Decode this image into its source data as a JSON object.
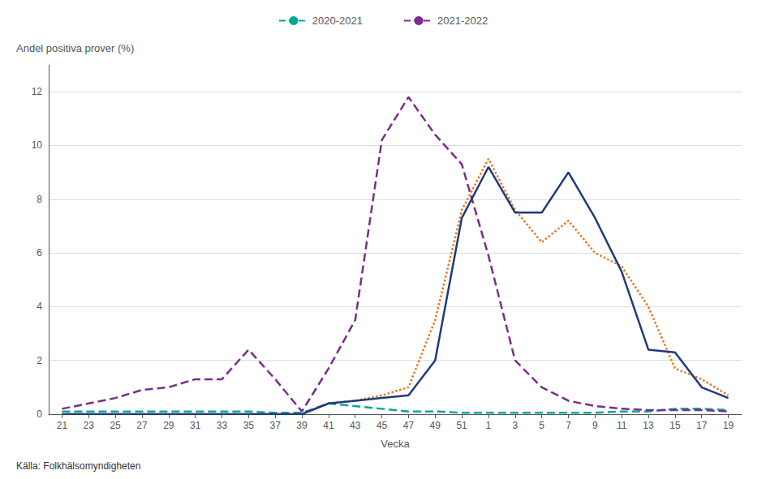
{
  "chart_data": {
    "type": "line",
    "ylabel": "Andel positiva prover (%)",
    "xlabel": "Vecka",
    "source": "Källa: Folkhälsomyndigheten",
    "categories": [
      "21",
      "23",
      "25",
      "27",
      "29",
      "31",
      "33",
      "35",
      "37",
      "39",
      "41",
      "43",
      "45",
      "47",
      "49",
      "51",
      "1",
      "3",
      "5",
      "7",
      "9",
      "11",
      "13",
      "15",
      "17",
      "19"
    ],
    "ylim": [
      0,
      13
    ],
    "yticks": [
      0,
      2,
      4,
      6,
      8,
      10,
      12
    ],
    "grid": true,
    "legend": "top",
    "series": [
      {
        "name": "2020-2021",
        "color": "#00A896",
        "line_style": "dashed",
        "values": [
          0.1,
          0.1,
          0.1,
          0.1,
          0.1,
          0.1,
          0.1,
          0.1,
          0.05,
          0.05,
          0.4,
          0.3,
          0.2,
          0.1,
          0.1,
          0.05,
          0.05,
          0.05,
          0.05,
          0.05,
          0.05,
          0.1,
          0.1,
          0.2,
          0.2,
          0.15
        ]
      },
      {
        "name": "2021-2022",
        "color": "#7B2D8B",
        "line_style": "dashed",
        "values": [
          0.2,
          0.4,
          0.6,
          0.9,
          1.0,
          1.3,
          1.3,
          2.4,
          1.3,
          0.1,
          1.7,
          3.5,
          10.2,
          11.8,
          10.4,
          9.3,
          5.9,
          2.0,
          1.0,
          0.5,
          0.3,
          0.2,
          0.15,
          0.15,
          0.15,
          0.1
        ]
      },
      {
        "color": "#E87722",
        "line_style": "dotted",
        "values": [
          0.0,
          0.0,
          0.0,
          0.0,
          0.0,
          0.0,
          0.0,
          0.0,
          0.0,
          0.0,
          0.4,
          0.5,
          0.7,
          1.0,
          3.5,
          7.6,
          9.5,
          7.6,
          6.4,
          7.2,
          6.0,
          5.5,
          4.0,
          1.7,
          1.3,
          0.7
        ]
      },
      {
        "color": "#1F3B7A",
        "line_style": "solid",
        "values": [
          0.0,
          0.0,
          0.0,
          0.0,
          0.0,
          0.0,
          0.0,
          0.0,
          0.0,
          0.0,
          0.4,
          0.5,
          0.6,
          0.7,
          2.0,
          7.3,
          9.2,
          7.5,
          7.5,
          9.0,
          7.3,
          5.3,
          2.4,
          2.3,
          1.0,
          0.6
        ]
      }
    ]
  }
}
